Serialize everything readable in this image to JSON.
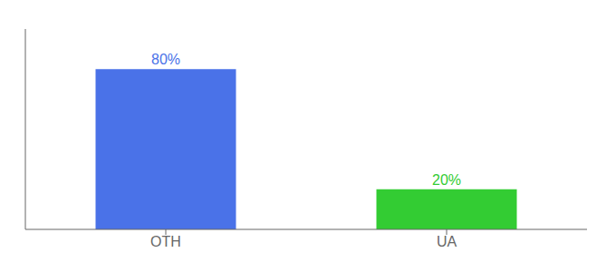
{
  "chart_data": {
    "type": "bar",
    "categories": [
      "OTH",
      "UA"
    ],
    "values": [
      80,
      20
    ],
    "value_labels": [
      "80%",
      "20%"
    ],
    "colors": [
      "#4a72e8",
      "#33cc33"
    ],
    "ylim": [
      0,
      100
    ],
    "data_labels": true,
    "tick_labels": "x"
  }
}
